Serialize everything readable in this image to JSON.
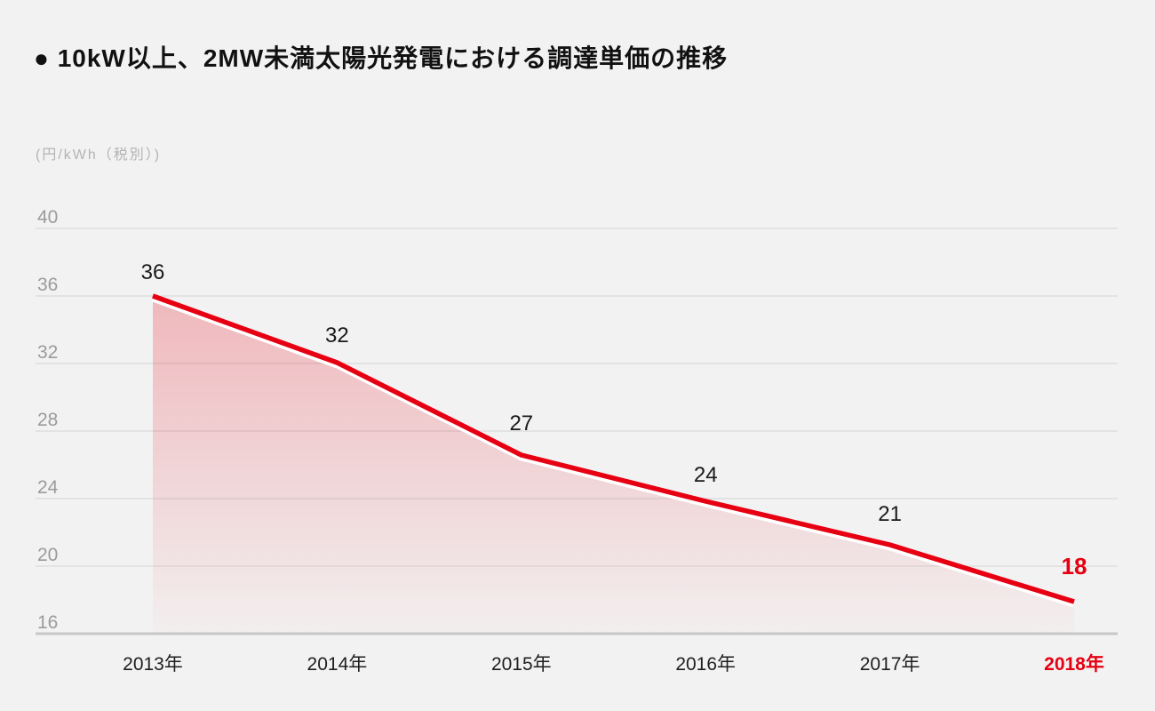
{
  "title": "● 10kW以上、2MW未満太陽光発電における調達単価の推移",
  "unit_label": "(円/kWh（税別）)",
  "colors": {
    "background": "#f2f2f2",
    "accent_red": "#e60012",
    "grid_line": "#dedede",
    "axis_baseline": "#c8c8c8",
    "tick_text": "#9b9b9b",
    "unit_text": "#b4b4b4",
    "label_text": "#1a1a1a"
  },
  "chart_data": {
    "type": "area",
    "title": "10kW以上、2MW未満太陽光発電における調達単価の推移",
    "categories": [
      "2013年",
      "2014年",
      "2015年",
      "2016年",
      "2017年",
      "2018年"
    ],
    "values": [
      36,
      32,
      27,
      24,
      21,
      18
    ],
    "highlight_index": 5,
    "ylabel": "(円/kWh（税別）)",
    "xlabel": "",
    "yticks": [
      40,
      36,
      32,
      28,
      24,
      20,
      16
    ],
    "ylim": [
      16,
      40
    ],
    "grid": true,
    "legend_position": "none",
    "line_color": "#e60012",
    "area_style": "red gradient fading to transparent toward bottom"
  }
}
